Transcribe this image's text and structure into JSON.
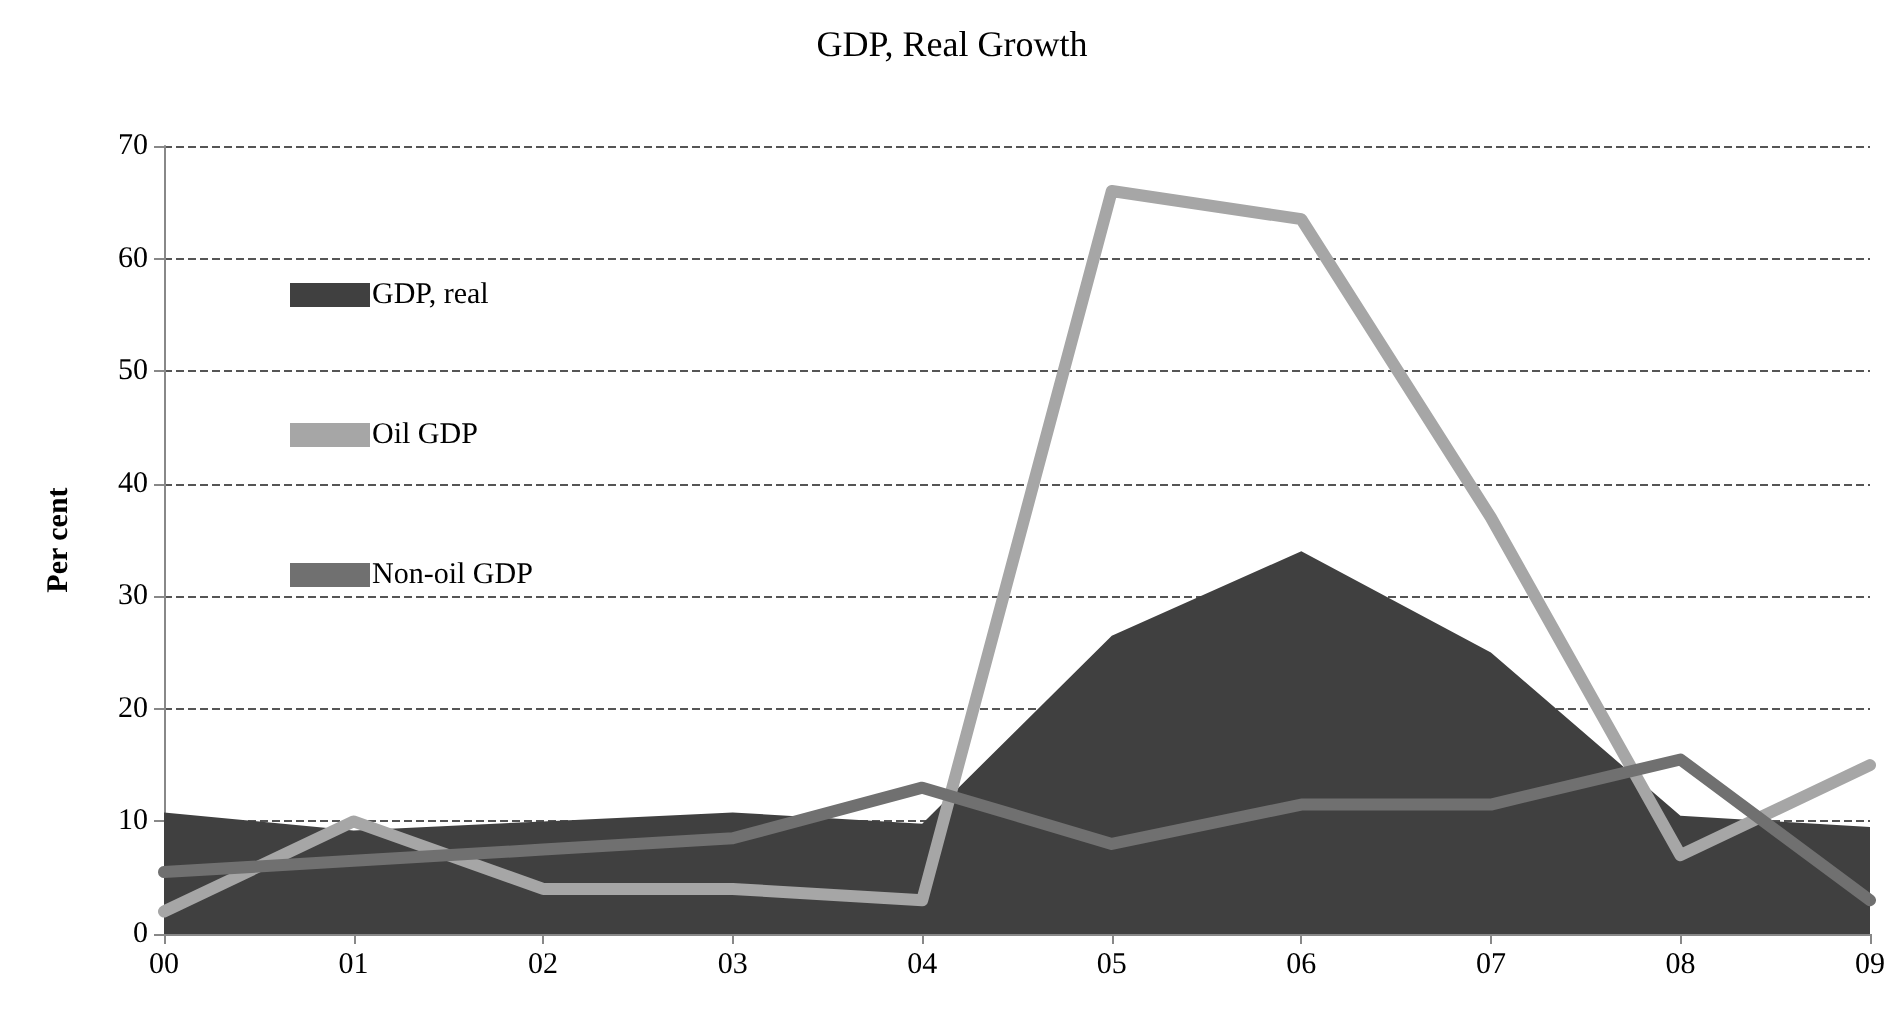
{
  "chart_data": {
    "type": "line",
    "title": "GDP, Real Growth",
    "ylabel": "Per cent",
    "categories": [
      "00",
      "01",
      "02",
      "03",
      "04",
      "05",
      "06",
      "07",
      "08",
      "09"
    ],
    "series": [
      {
        "name": "GDP, real",
        "type": "area",
        "color": "#404040",
        "values": [
          10.8,
          9.2,
          10,
          10.8,
          9.8,
          26.5,
          34,
          25,
          10.5,
          9.5
        ]
      },
      {
        "name": "Oil GDP",
        "color": "#a6a6a6",
        "values": [
          2,
          10,
          4,
          4,
          3,
          66,
          63.5,
          37,
          7,
          15
        ]
      },
      {
        "name": "Non-oil GDP",
        "color": "#707070",
        "values": [
          5.5,
          6.5,
          7.5,
          8.5,
          13,
          8,
          11.5,
          11.5,
          15.5,
          3
        ]
      }
    ],
    "ylim": [
      0,
      70
    ],
    "yticks": [
      0,
      10,
      20,
      30,
      40,
      50,
      60,
      70
    ],
    "grid": "y",
    "legend": "top left",
    "marker": "none",
    "line_style": "solid"
  }
}
